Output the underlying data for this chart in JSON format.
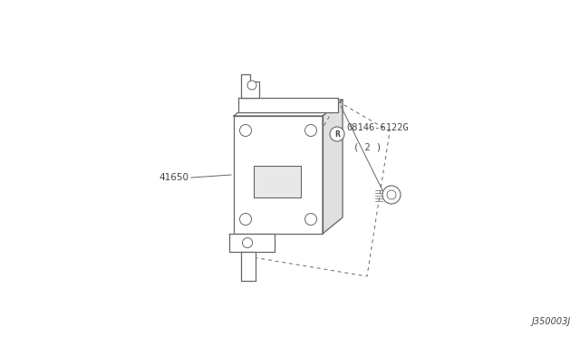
{
  "bg_color": "#ffffff",
  "line_color": "#666666",
  "text_color": "#444444",
  "label_41650": "41650",
  "label_part": "08146-6122G",
  "label_qty": "( 2 )",
  "label_code": "J350003J"
}
